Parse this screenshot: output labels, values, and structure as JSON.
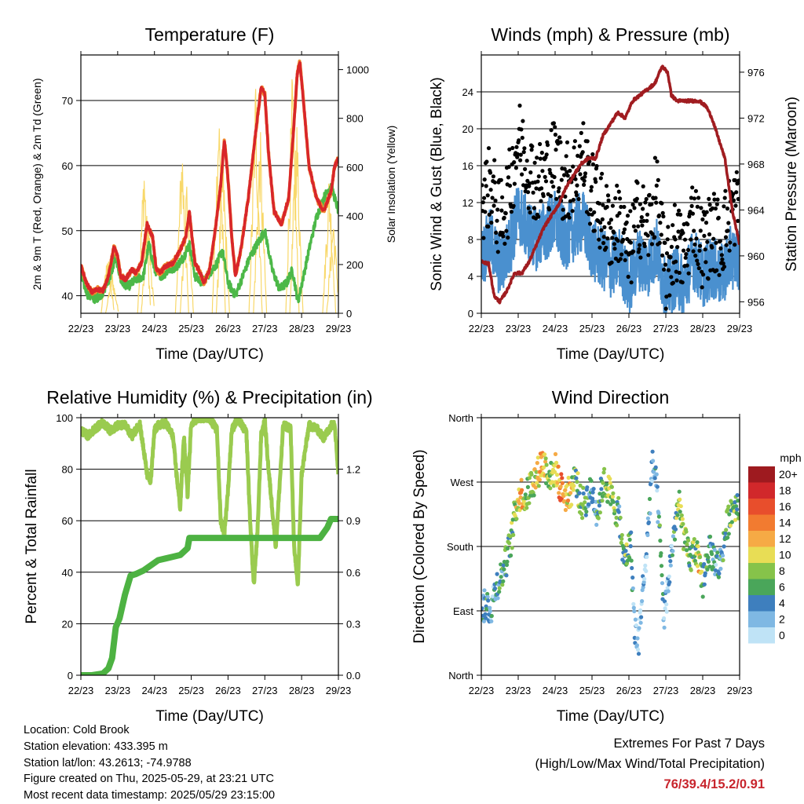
{
  "chart_data": [
    {
      "type": "line",
      "title": "Temperature (F)",
      "xlabel": "Time (Day/UTC)",
      "ylabel": "2m & 9m T (Red, Orange) & 2m Td (Green)",
      "ylabel_right": "Solar Insolation (Yellow)",
      "x_ticks": [
        "22/23",
        "23/23",
        "24/23",
        "25/23",
        "26/23",
        "27/23",
        "28/23",
        "29/23"
      ],
      "xlim": [
        0,
        7
      ],
      "ylim": [
        37.3,
        77
      ],
      "yticks": [
        40,
        50,
        60,
        70
      ],
      "ylim_right": [
        0,
        1060
      ],
      "yticks_right": [
        0,
        200,
        400,
        600,
        800,
        1000
      ],
      "grid": true,
      "colors": {
        "temp_2m": "#d8262a",
        "temp_9m": "#f0872c",
        "dewpoint": "#4cb848",
        "solar": "#f8d86a"
      },
      "series": [
        {
          "key": "temp_2m",
          "x": [
            0,
            0.15,
            0.3,
            0.45,
            0.6,
            0.75,
            0.9,
            1.0,
            1.08,
            1.22,
            1.38,
            1.5,
            1.65,
            1.8,
            1.95,
            2.05,
            2.15,
            2.3,
            2.5,
            2.7,
            2.85,
            2.95,
            3.0,
            3.1,
            3.2,
            3.35,
            3.5,
            3.65,
            3.8,
            3.9,
            4.0,
            4.1,
            4.2,
            4.35,
            4.55,
            4.75,
            4.9,
            5.0,
            5.1,
            5.25,
            5.45,
            5.65,
            5.8,
            5.88,
            5.95,
            6.05,
            6.2,
            6.4,
            6.6,
            6.8,
            6.9,
            7.0
          ],
          "y": [
            44.5,
            42,
            40.5,
            41,
            40.8,
            43,
            47.5,
            46,
            43,
            42.5,
            44,
            43.5,
            45,
            51,
            49,
            44,
            43.5,
            44.5,
            45,
            47,
            49,
            53,
            50,
            45,
            44,
            42,
            44,
            50,
            57,
            64,
            58,
            49,
            43,
            47,
            55,
            65,
            72,
            71,
            62,
            53,
            51,
            55,
            67,
            74,
            76,
            70,
            60,
            55,
            53,
            56,
            60,
            61
          ]
        },
        {
          "key": "dewpoint",
          "x": [
            0,
            0.2,
            0.4,
            0.6,
            0.8,
            0.95,
            1.1,
            1.3,
            1.5,
            1.7,
            1.85,
            2.0,
            2.2,
            2.4,
            2.6,
            2.8,
            2.95,
            3.1,
            3.3,
            3.5,
            3.7,
            3.85,
            4.0,
            4.2,
            4.4,
            4.6,
            4.8,
            5.0,
            5.2,
            5.4,
            5.6,
            5.75,
            5.9,
            6.05,
            6.2,
            6.4,
            6.6,
            6.8,
            7.0
          ],
          "y": [
            43,
            40,
            39.5,
            40.5,
            43,
            46,
            42,
            41.5,
            42.5,
            43,
            48,
            44,
            43,
            44,
            44.5,
            46,
            48,
            43,
            42,
            43.5,
            45,
            47,
            42,
            40,
            43,
            46,
            48,
            50,
            44,
            41,
            42,
            44,
            39,
            43,
            47,
            52,
            55,
            57,
            53
          ]
        },
        {
          "key": "solar",
          "peaks": [
            {
              "x": 0.73,
              "y": 270
            },
            {
              "x": 0.85,
              "y": 180
            },
            {
              "x": 1.72,
              "y": 680
            },
            {
              "x": 1.82,
              "y": 450
            },
            {
              "x": 2.75,
              "y": 770
            },
            {
              "x": 2.88,
              "y": 600
            },
            {
              "x": 3.75,
              "y": 940
            },
            {
              "x": 3.86,
              "y": 700
            },
            {
              "x": 4.75,
              "y": 1000
            },
            {
              "x": 4.87,
              "y": 800
            },
            {
              "x": 5.75,
              "y": 1040
            },
            {
              "x": 5.86,
              "y": 880
            },
            {
              "x": 6.75,
              "y": 620
            },
            {
              "x": 6.86,
              "y": 440
            }
          ]
        }
      ]
    },
    {
      "type": "scatter",
      "title": "Winds (mph) & Pressure (mb)",
      "xlabel": "Time (Day/UTC)",
      "ylabel": "Sonic Wind & Gust (Blue, Black)",
      "ylabel_right": "Station Pressure (Maroon)",
      "x_ticks": [
        "22/23",
        "23/23",
        "24/23",
        "25/23",
        "26/23",
        "27/23",
        "28/23",
        "29/23"
      ],
      "xlim": [
        0,
        7
      ],
      "ylim": [
        0,
        28
      ],
      "yticks": [
        0,
        4,
        8,
        12,
        16,
        20,
        24
      ],
      "ylim_right": [
        955,
        977.5
      ],
      "yticks_right": [
        956,
        960,
        964,
        968,
        972,
        976
      ],
      "grid": true,
      "colors": {
        "wind": "#4a90cf",
        "gust": "#000000",
        "pressure": "#a01c20"
      },
      "series": [
        {
          "key": "wind",
          "name": "Sonic Wind",
          "x": [
            0,
            0.25,
            0.5,
            0.75,
            1.0,
            1.25,
            1.5,
            1.75,
            2.0,
            2.25,
            2.5,
            2.75,
            3.0,
            3.25,
            3.5,
            3.75,
            4.0,
            4.25,
            4.5,
            4.75,
            5.0,
            5.25,
            5.5,
            5.75,
            6.0,
            6.25,
            6.5,
            6.75,
            7.0
          ],
          "y": [
            6,
            8,
            5,
            7,
            11,
            9,
            8,
            9,
            10,
            8,
            9,
            10,
            7,
            6,
            5,
            6,
            3,
            6,
            5,
            7,
            2,
            4,
            3,
            6,
            4,
            5,
            4,
            6,
            6
          ]
        },
        {
          "key": "gust",
          "name": "Gust",
          "x": [
            0,
            0.25,
            0.5,
            0.75,
            1.0,
            1.25,
            1.5,
            1.75,
            2.0,
            2.25,
            2.5,
            2.75,
            3.0,
            3.25,
            3.5,
            3.75,
            4.0,
            4.25,
            4.5,
            4.75,
            5.0,
            5.25,
            5.5,
            5.75,
            6.0,
            6.25,
            6.5,
            6.75,
            7.0
          ],
          "y": [
            12,
            14,
            10,
            13,
            19,
            16,
            14,
            15,
            17,
            14,
            15,
            17,
            13,
            11,
            9,
            10,
            6,
            11,
            9,
            13,
            4,
            8,
            6,
            11,
            7,
            9,
            8,
            11,
            12
          ]
        },
        {
          "key": "pressure",
          "name": "Station Pressure",
          "x": [
            0,
            0.2,
            0.35,
            0.5,
            0.7,
            0.9,
            1.1,
            1.3,
            1.5,
            1.7,
            1.9,
            2.1,
            2.3,
            2.5,
            2.7,
            2.9,
            3.1,
            3.3,
            3.5,
            3.7,
            3.9,
            4.1,
            4.3,
            4.5,
            4.7,
            4.9,
            5.05,
            5.15,
            5.3,
            5.5,
            5.7,
            5.9,
            6.1,
            6.25,
            6.4,
            6.6,
            6.8,
            7.0
          ],
          "y": [
            959.5,
            959.3,
            956.5,
            956,
            957,
            958.5,
            958.5,
            959.5,
            961,
            962.5,
            963.5,
            964.5,
            966,
            967,
            968,
            968.5,
            968.5,
            970.5,
            971.5,
            972.5,
            972,
            973.5,
            974,
            974.5,
            975,
            976.5,
            976,
            974,
            973.5,
            973.5,
            973.5,
            973.5,
            973,
            972,
            970.5,
            968.5,
            964,
            961
          ]
        }
      ]
    },
    {
      "type": "line",
      "title": "Relative Humidity (%) & Precipitation (in)",
      "xlabel": "Time (Day/UTC)",
      "ylabel": "Percent & Total Rainfall",
      "x_ticks": [
        "22/23",
        "23/23",
        "24/23",
        "25/23",
        "26/23",
        "27/23",
        "28/23",
        "29/23"
      ],
      "xlim": [
        0,
        7
      ],
      "ylim": [
        0,
        100
      ],
      "yticks": [
        0,
        20,
        40,
        60,
        80,
        100
      ],
      "ylim_right": [
        0,
        1.5
      ],
      "yticks_right": [
        "0.0",
        "0.3",
        "0.6",
        "0.9",
        "1.2"
      ],
      "grid": true,
      "colors": {
        "rh": "#9acb4f",
        "precip": "#4db242"
      },
      "series": [
        {
          "key": "rh",
          "name": "Relative Humidity",
          "x": [
            0,
            0.2,
            0.4,
            0.6,
            0.8,
            1.0,
            1.2,
            1.4,
            1.6,
            1.8,
            1.9,
            2.0,
            2.1,
            2.3,
            2.5,
            2.6,
            2.7,
            2.8,
            2.9,
            3.0,
            3.2,
            3.5,
            3.7,
            3.8,
            3.9,
            4.0,
            4.1,
            4.2,
            4.3,
            4.5,
            4.6,
            4.7,
            4.8,
            4.9,
            5.0,
            5.1,
            5.3,
            5.5,
            5.7,
            5.8,
            5.9,
            6.0,
            6.2,
            6.4,
            6.6,
            6.8,
            6.9,
            7.0
          ],
          "y": [
            95,
            93,
            96,
            98,
            95,
            97,
            97,
            93,
            98,
            78,
            75,
            95,
            97,
            98,
            93,
            78,
            65,
            93,
            70,
            98,
            100,
            100,
            95,
            60,
            55,
            72,
            95,
            98,
            99,
            94,
            60,
            35,
            55,
            93,
            99,
            80,
            50,
            97,
            96,
            48,
            35,
            78,
            97,
            96,
            92,
            97,
            98,
            78
          ]
        },
        {
          "key": "precip",
          "name": "Total Rainfall",
          "x": [
            0,
            0.3,
            0.6,
            0.75,
            0.85,
            0.95,
            1.05,
            1.2,
            1.35,
            1.5,
            1.7,
            1.9,
            2.1,
            2.3,
            2.5,
            2.7,
            2.9,
            2.95,
            3.05,
            6.5,
            6.7,
            6.8,
            7.0
          ],
          "y": [
            0,
            0,
            0.01,
            0.04,
            0.1,
            0.28,
            0.33,
            0.47,
            0.58,
            0.59,
            0.61,
            0.64,
            0.67,
            0.68,
            0.69,
            0.7,
            0.74,
            0.8,
            0.8,
            0.8,
            0.86,
            0.91,
            0.91
          ]
        }
      ]
    },
    {
      "type": "scatter",
      "title": "Wind Direction",
      "xlabel": "Time (Day/UTC)",
      "ylabel": "Direction (Colored By Speed)",
      "x_ticks": [
        "22/23",
        "23/23",
        "24/23",
        "25/23",
        "26/23",
        "27/23",
        "28/23",
        "29/23"
      ],
      "xlim": [
        0,
        7
      ],
      "ylim": [
        0,
        360
      ],
      "ytick_labels": [
        "North",
        "East",
        "South",
        "West",
        "North"
      ],
      "grid": true,
      "colorbar": {
        "title": "mph",
        "labels": [
          "20+",
          "18",
          "16",
          "14",
          "12",
          "10",
          "8",
          "6",
          "4",
          "2",
          "0"
        ],
        "colors": [
          "#9e1a1f",
          "#d1282b",
          "#e84e2c",
          "#f27b30",
          "#f6aa45",
          "#e8dd55",
          "#86c34a",
          "#4aa65a",
          "#3e7fbe",
          "#7fb8e3",
          "#bfe3f6"
        ]
      },
      "series": [
        {
          "key": "direction",
          "x": [
            0.05,
            0.15,
            0.25,
            0.4,
            0.55,
            0.7,
            0.85,
            0.9,
            1.0,
            1.1,
            1.2,
            1.35,
            1.5,
            1.65,
            1.8,
            1.9,
            2.0,
            2.15,
            2.3,
            2.45,
            2.55,
            2.7,
            2.85,
            3.0,
            3.15,
            3.3,
            3.45,
            3.6,
            3.75,
            3.85,
            3.95,
            4.05,
            4.15,
            4.25,
            4.35,
            4.45,
            4.55,
            4.65,
            4.75,
            4.85,
            4.95,
            5.05,
            5.15,
            5.25,
            5.35,
            5.5,
            5.65,
            5.8,
            5.9,
            6.0,
            6.15,
            6.3,
            6.45,
            6.6,
            6.75,
            6.9
          ],
          "y": [
            95,
            100,
            90,
            125,
            140,
            165,
            200,
            225,
            248,
            256,
            245,
            268,
            278,
            300,
            285,
            275,
            290,
            262,
            250,
            260,
            280,
            238,
            246,
            258,
            226,
            270,
            260,
            236,
            222,
            158,
            170,
            188,
            70,
            40,
            110,
            150,
            230,
            300,
            260,
            180,
            80,
            120,
            170,
            210,
            240,
            190,
            160,
            180,
            150,
            130,
            175,
            165,
            150,
            195,
            230,
            240
          ],
          "speed": [
            4,
            5,
            3,
            4,
            5,
            6,
            7,
            8,
            11,
            12,
            9,
            8,
            10,
            13,
            8,
            7,
            9,
            14,
            12,
            10,
            7,
            6,
            5,
            4,
            5,
            7,
            9,
            8,
            4,
            6,
            7,
            5,
            2,
            1,
            2,
            1,
            4,
            3,
            2,
            6,
            1,
            1,
            3,
            6,
            8,
            9,
            6,
            7,
            11,
            6,
            5,
            3,
            4,
            6,
            7,
            7
          ]
        }
      ]
    }
  ],
  "info": {
    "location": "Location: Cold Brook",
    "elevation": "Station elevation: 433.395 m",
    "latlon": "Station lat/lon: 43.2613; -74.9788",
    "created": "Figure created on Thu, 2025-05-29, at 23:21 UTC",
    "timestamp": "Most recent data timestamp: 2025/05/29 23:15:00"
  },
  "extremes": {
    "title": "Extremes For Past 7 Days",
    "subtitle": "(High/Low/Max Wind/Total Precipitation)",
    "values": "76/39.4/15.2/0.91"
  }
}
